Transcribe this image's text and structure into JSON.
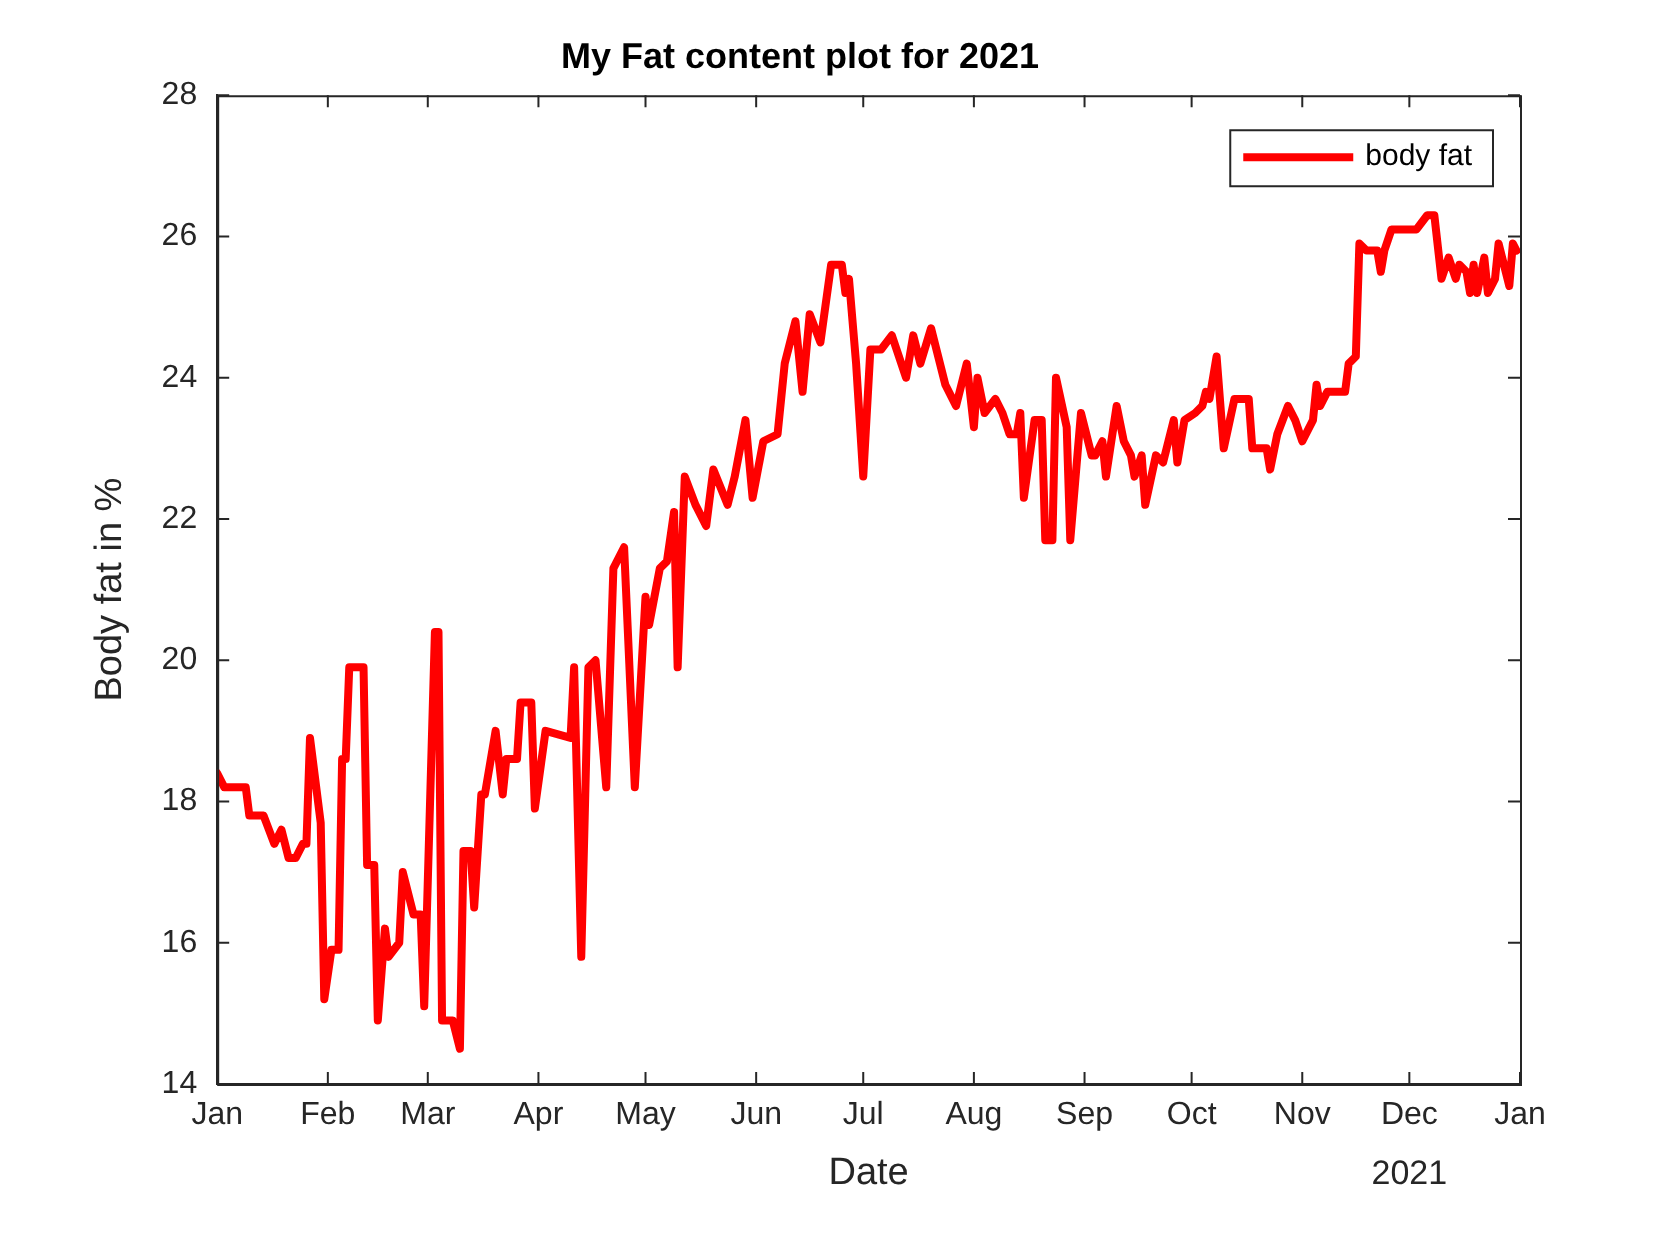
{
  "chart_data": {
    "type": "line",
    "title": "My Fat content plot for 2021",
    "xlabel": "Date",
    "ylabel": "Body fat in %",
    "annotations": [
      "2021"
    ],
    "xlim": [
      "2021-01-01",
      "2022-01-01"
    ],
    "xticks": [
      {
        "value": "2021-01-01",
        "label": "Jan"
      },
      {
        "value": "2021-02-01",
        "label": "Feb"
      },
      {
        "value": "2021-03-01",
        "label": "Mar"
      },
      {
        "value": "2021-04-01",
        "label": "Apr"
      },
      {
        "value": "2021-05-01",
        "label": "May"
      },
      {
        "value": "2021-06-01",
        "label": "Jun"
      },
      {
        "value": "2021-07-01",
        "label": "Jul"
      },
      {
        "value": "2021-08-01",
        "label": "Aug"
      },
      {
        "value": "2021-09-01",
        "label": "Sep"
      },
      {
        "value": "2021-10-01",
        "label": "Oct"
      },
      {
        "value": "2021-11-01",
        "label": "Nov"
      },
      {
        "value": "2021-12-01",
        "label": "Dec"
      },
      {
        "value": "2022-01-01",
        "label": "Jan"
      }
    ],
    "ylim": [
      14,
      28
    ],
    "yticks": [
      14,
      16,
      18,
      20,
      22,
      24,
      26,
      28
    ],
    "grid": false,
    "legend": "top right",
    "marker": "none",
    "line_style": "solid",
    "x": [
      "2021-01-01",
      "2021-01-03",
      "2021-01-09",
      "2021-01-10",
      "2021-01-14",
      "2021-01-17",
      "2021-01-19",
      "2021-01-21",
      "2021-01-23",
      "2021-01-25",
      "2021-01-26",
      "2021-01-27",
      "2021-01-30",
      "2021-01-31",
      "2021-02-02",
      "2021-02-04",
      "2021-02-05",
      "2021-02-06",
      "2021-02-07",
      "2021-02-11",
      "2021-02-12",
      "2021-02-14",
      "2021-02-15",
      "2021-02-17",
      "2021-02-18",
      "2021-02-21",
      "2021-02-22",
      "2021-02-25",
      "2021-02-27",
      "2021-02-28",
      "2021-03-03",
      "2021-03-04",
      "2021-03-05",
      "2021-03-08",
      "2021-03-10",
      "2021-03-11",
      "2021-03-13",
      "2021-03-14",
      "2021-03-16",
      "2021-03-17",
      "2021-03-20",
      "2021-03-22",
      "2021-03-23",
      "2021-03-26",
      "2021-03-27",
      "2021-03-30",
      "2021-03-31",
      "2021-04-03",
      "2021-04-10",
      "2021-04-11",
      "2021-04-13",
      "2021-04-15",
      "2021-04-17",
      "2021-04-20",
      "2021-04-22",
      "2021-04-25",
      "2021-04-28",
      "2021-05-01",
      "2021-05-02",
      "2021-05-05",
      "2021-05-07",
      "2021-05-09",
      "2021-05-10",
      "2021-05-12",
      "2021-05-15",
      "2021-05-18",
      "2021-05-20",
      "2021-05-24",
      "2021-05-26",
      "2021-05-29",
      "2021-05-31",
      "2021-06-03",
      "2021-06-07",
      "2021-06-08",
      "2021-06-09",
      "2021-06-12",
      "2021-06-14",
      "2021-06-16",
      "2021-06-19",
      "2021-06-22",
      "2021-06-25",
      "2021-06-26",
      "2021-06-27",
      "2021-06-29",
      "2021-07-01",
      "2021-07-03",
      "2021-07-06",
      "2021-07-09",
      "2021-07-13",
      "2021-07-15",
      "2021-07-17",
      "2021-07-20",
      "2021-07-24",
      "2021-07-27",
      "2021-07-30",
      "2021-08-01",
      "2021-08-02",
      "2021-08-04",
      "2021-08-07",
      "2021-08-09",
      "2021-08-11",
      "2021-08-13",
      "2021-08-14",
      "2021-08-15",
      "2021-08-18",
      "2021-08-20",
      "2021-08-21",
      "2021-08-23",
      "2021-08-24",
      "2021-08-27",
      "2021-08-28",
      "2021-08-31",
      "2021-09-03",
      "2021-09-04",
      "2021-09-06",
      "2021-09-07",
      "2021-09-10",
      "2021-09-12",
      "2021-09-14",
      "2021-09-15",
      "2021-09-17",
      "2021-09-18",
      "2021-09-21",
      "2021-09-23",
      "2021-09-26",
      "2021-09-27",
      "2021-09-29",
      "2021-10-02",
      "2021-10-04",
      "2021-10-05",
      "2021-10-06",
      "2021-10-08",
      "2021-10-10",
      "2021-10-13",
      "2021-10-17",
      "2021-10-18",
      "2021-10-22",
      "2021-10-23",
      "2021-10-25",
      "2021-10-28",
      "2021-10-30",
      "2021-11-01",
      "2021-11-04",
      "2021-11-05",
      "2021-11-06",
      "2021-11-08",
      "2021-11-13",
      "2021-11-14",
      "2021-11-16",
      "2021-11-17",
      "2021-11-19",
      "2021-11-22",
      "2021-11-23",
      "2021-11-24",
      "2021-11-26",
      "2021-12-03",
      "2021-12-06",
      "2021-12-08",
      "2021-12-10",
      "2021-12-12",
      "2021-12-14",
      "2021-12-15",
      "2021-12-17",
      "2021-12-18",
      "2021-12-19",
      "2021-12-20",
      "2021-12-22",
      "2021-12-23",
      "2021-12-25",
      "2021-12-26",
      "2021-12-29",
      "2021-12-30",
      "2021-12-31"
    ],
    "series": [
      {
        "name": "body fat",
        "color": "#ff0000",
        "values": [
          18.4,
          18.2,
          18.2,
          17.8,
          17.8,
          17.4,
          17.6,
          17.2,
          17.2,
          17.4,
          17.4,
          18.9,
          17.7,
          15.2,
          15.9,
          15.9,
          18.6,
          18.6,
          19.9,
          19.9,
          17.1,
          17.1,
          14.9,
          16.2,
          15.8,
          16.0,
          17.0,
          16.4,
          16.4,
          15.1,
          20.4,
          20.4,
          14.9,
          14.9,
          14.5,
          17.3,
          17.3,
          16.5,
          18.1,
          18.1,
          19.0,
          18.1,
          18.6,
          18.6,
          19.4,
          19.4,
          17.9,
          19.0,
          18.9,
          19.9,
          15.8,
          19.9,
          20.0,
          18.2,
          21.3,
          21.6,
          18.2,
          20.9,
          20.5,
          21.3,
          21.4,
          22.1,
          19.9,
          22.6,
          22.2,
          21.9,
          22.7,
          22.2,
          22.6,
          23.4,
          22.3,
          23.1,
          23.2,
          23.7,
          24.2,
          24.8,
          23.8,
          24.9,
          24.5,
          25.6,
          25.6,
          25.2,
          25.4,
          24.2,
          22.6,
          24.4,
          24.4,
          24.6,
          24.0,
          24.6,
          24.2,
          24.7,
          23.9,
          23.6,
          24.2,
          23.3,
          24.0,
          23.5,
          23.7,
          23.5,
          23.2,
          23.2,
          23.5,
          22.3,
          23.4,
          23.4,
          21.7,
          21.7,
          24.0,
          23.3,
          21.7,
          23.5,
          22.9,
          22.9,
          23.1,
          22.6,
          23.6,
          23.1,
          22.9,
          22.6,
          22.9,
          22.2,
          22.9,
          22.8,
          23.4,
          22.8,
          23.4,
          23.5,
          23.6,
          23.8,
          23.7,
          24.3,
          23.0,
          23.7,
          23.7,
          23.0,
          23.0,
          22.7,
          23.2,
          23.6,
          23.4,
          23.1,
          23.4,
          23.9,
          23.6,
          23.8,
          23.8,
          24.2,
          24.3,
          25.9,
          25.8,
          25.8,
          25.5,
          25.8,
          26.1,
          26.1,
          26.3,
          26.3,
          25.4,
          25.7,
          25.4,
          25.6,
          25.5,
          25.2,
          25.6,
          25.2,
          25.7,
          25.2,
          25.4,
          25.9,
          25.3,
          25.9,
          25.8
        ]
      }
    ]
  }
}
